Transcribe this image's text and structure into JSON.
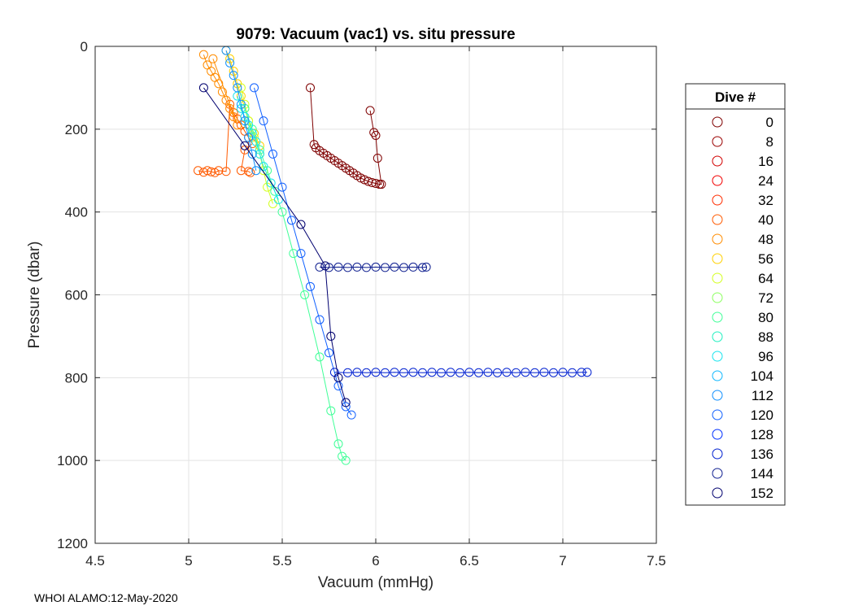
{
  "chart_data": {
    "type": "scatter",
    "title": "9079: Vacuum (vac1) vs. situ pressure",
    "xlabel": "Vacuum (mmHg)",
    "ylabel": "Pressure (dbar)",
    "xlim": [
      4.5,
      7.5
    ],
    "ylim": [
      0,
      1200
    ],
    "y_reversed": true,
    "grid": true,
    "xticks": [
      "4.5",
      "5",
      "5.5",
      "6",
      "6.5",
      "7",
      "7.5"
    ],
    "yticks": [
      "0",
      "200",
      "400",
      "600",
      "800",
      "1000",
      "1200"
    ],
    "legend": {
      "title": "Dive #",
      "placement": "outside-right",
      "entries": [
        "0",
        "8",
        "16",
        "24",
        "32",
        "40",
        "48",
        "56",
        "64",
        "72",
        "80",
        "88",
        "96",
        "104",
        "112",
        "120",
        "128",
        "136",
        "144",
        "152"
      ],
      "colors": [
        "#7f0000",
        "#9a0000",
        "#d20000",
        "#f20000",
        "#ff2d00",
        "#ff5a00",
        "#ff8c00",
        "#ffd000",
        "#d4ff20",
        "#8cff60",
        "#40ff98",
        "#20f0c0",
        "#18e4ee",
        "#10b8ff",
        "#1090ff",
        "#1060ff",
        "#0030ff",
        "#0020d0",
        "#102090",
        "#00006f"
      ]
    },
    "series": [
      {
        "name": "0",
        "x": [
          5.65,
          5.67,
          5.68,
          5.7,
          5.72,
          5.74,
          5.76,
          5.78,
          5.8,
          5.82,
          5.84,
          5.86,
          5.88,
          5.9,
          5.92,
          5.94,
          5.96,
          5.98,
          6.0,
          6.02,
          6.03,
          6.01,
          6.0,
          5.99,
          5.97
        ],
        "y": [
          100,
          237,
          245,
          252,
          258,
          264,
          270,
          276,
          282,
          288,
          294,
          300,
          306,
          312,
          318,
          322,
          326,
          329,
          331,
          333,
          333,
          270,
          215,
          208,
          155
        ]
      },
      {
        "name": "40",
        "x": [
          5.05,
          5.08,
          5.1,
          5.12,
          5.14,
          5.16,
          5.2,
          5.22,
          5.24,
          5.26,
          5.28,
          5.3,
          5.32,
          5.34,
          5.3,
          5.28,
          5.32,
          5.33
        ],
        "y": [
          300,
          304,
          300,
          303,
          305,
          300,
          302,
          140,
          160,
          175,
          190,
          205,
          220,
          235,
          250,
          300,
          302,
          305
        ]
      },
      {
        "name": "48",
        "x": [
          5.08,
          5.1,
          5.12,
          5.14,
          5.16,
          5.18,
          5.2,
          5.22,
          5.24,
          5.26,
          5.13
        ],
        "y": [
          20,
          45,
          60,
          75,
          90,
          110,
          130,
          150,
          170,
          190,
          30
        ]
      },
      {
        "name": "56",
        "x": [
          5.2,
          5.22,
          5.24,
          5.26,
          5.28,
          5.3,
          5.32,
          5.35,
          5.38
        ],
        "y": [
          10,
          30,
          60,
          90,
          120,
          150,
          180,
          210,
          240
        ]
      },
      {
        "name": "64",
        "x": [
          5.28,
          5.3,
          5.32,
          5.35,
          5.38,
          5.4,
          5.42,
          5.45
        ],
        "y": [
          100,
          140,
          180,
          220,
          260,
          300,
          340,
          380
        ]
      },
      {
        "name": "80",
        "x": [
          5.3,
          5.34,
          5.38,
          5.42,
          5.46,
          5.5,
          5.56,
          5.62,
          5.7,
          5.76,
          5.8,
          5.82,
          5.84
        ],
        "y": [
          150,
          200,
          250,
          300,
          350,
          400,
          500,
          600,
          750,
          880,
          960,
          990,
          1000
        ]
      },
      {
        "name": "96",
        "x": [
          5.26,
          5.28,
          5.3,
          5.32,
          5.34,
          5.36,
          5.38,
          5.4,
          5.44,
          5.48
        ],
        "y": [
          120,
          150,
          170,
          190,
          210,
          230,
          260,
          290,
          330,
          370
        ]
      },
      {
        "name": "112",
        "x": [
          5.2,
          5.22,
          5.24,
          5.26,
          5.28,
          5.3,
          5.32,
          5.34,
          5.36
        ],
        "y": [
          10,
          40,
          70,
          100,
          140,
          180,
          220,
          260,
          300
        ]
      },
      {
        "name": "120",
        "x": [
          5.35,
          5.4,
          5.45,
          5.5,
          5.55,
          5.6,
          5.65,
          5.7,
          5.75,
          5.8,
          5.84,
          5.87
        ],
        "y": [
          100,
          180,
          260,
          340,
          420,
          500,
          580,
          660,
          740,
          820,
          870,
          890
        ]
      },
      {
        "name": "136",
        "x": [
          5.78,
          5.85,
          5.9,
          5.95,
          6.0,
          6.05,
          6.1,
          6.15,
          6.2,
          6.25,
          6.3,
          6.35,
          6.4,
          6.45,
          6.5,
          6.55,
          6.6,
          6.65,
          6.7,
          6.75,
          6.8,
          6.85,
          6.9,
          6.95,
          7.0,
          7.05,
          7.1,
          7.13
        ],
        "y": [
          787,
          788,
          787,
          788,
          787,
          788,
          787,
          788,
          787,
          788,
          787,
          788,
          787,
          788,
          787,
          788,
          787,
          788,
          787,
          788,
          787,
          788,
          787,
          788,
          787,
          788,
          787,
          787
        ]
      },
      {
        "name": "144",
        "x": [
          5.7,
          5.75,
          5.8,
          5.85,
          5.9,
          5.95,
          6.0,
          6.05,
          6.1,
          6.15,
          6.2,
          6.25,
          6.27
        ],
        "y": [
          533,
          534,
          533,
          534,
          533,
          534,
          533,
          534,
          533,
          534,
          533,
          534,
          533
        ]
      },
      {
        "name": "152",
        "x": [
          5.08,
          5.3,
          5.6,
          5.73,
          5.76,
          5.8,
          5.84
        ],
        "y": [
          100,
          240,
          430,
          530,
          700,
          800,
          860
        ]
      }
    ]
  },
  "footer": "WHOI ALAMO:12-May-2020"
}
